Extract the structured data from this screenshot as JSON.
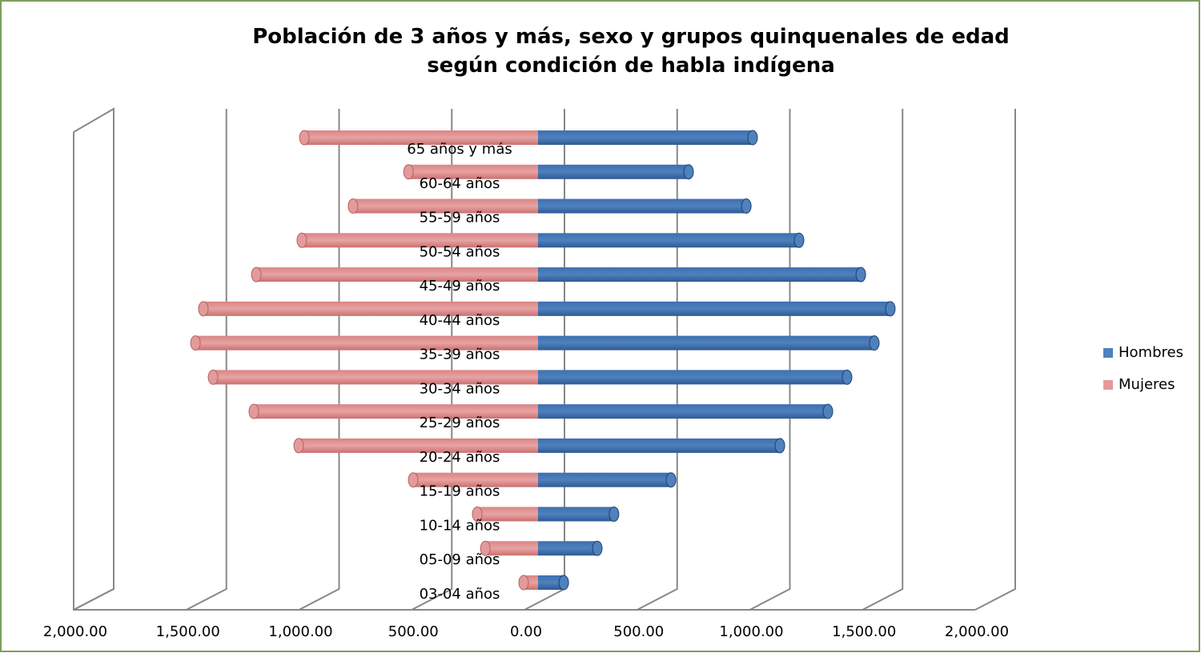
{
  "chart_data": {
    "type": "bar",
    "orientation": "horizontal",
    "stacked": true,
    "title": "Población de 3 años y más, sexo y grupos quinquenales de edad según condición de habla indígena",
    "categories": [
      "03-04 años",
      "05-09 años",
      "10-14 años",
      "15-19 años",
      "20-24 años",
      "25-29 años",
      "30-34 años",
      "35-39 años",
      "40-44 años",
      "45-49 años",
      "50-54 años",
      "55-59 años",
      "60-64 años",
      "65 años y más"
    ],
    "series": [
      {
        "name": "Hombres",
        "color": "#4f81bd",
        "values": [
          114,
          263,
          337,
          590,
          1073,
          1286,
          1371,
          1492,
          1563,
          1432,
          1158,
          924,
          668,
          952
        ]
      },
      {
        "name": "Mujeres",
        "color": "#e39a9a",
        "values": [
          -64,
          -234,
          -270,
          -554,
          -1062,
          -1261,
          -1442,
          -1520,
          -1485,
          -1250,
          -1048,
          -821,
          -575,
          -1037
        ]
      }
    ],
    "xlim": [
      -2000,
      2000
    ],
    "xticks": [
      {
        "value": -2000,
        "label": "2,000.00"
      },
      {
        "value": -1500,
        "label": "1,500.00"
      },
      {
        "value": -1000,
        "label": "1,000.00"
      },
      {
        "value": -500,
        "label": "500.00"
      },
      {
        "value": 0,
        "label": "0.00"
      },
      {
        "value": 500,
        "label": "500.00"
      },
      {
        "value": 1000,
        "label": "1,000.00"
      },
      {
        "value": 1500,
        "label": "1,500.00"
      },
      {
        "value": 2000,
        "label": "2,000.00"
      }
    ],
    "grid": true,
    "legend": "right"
  }
}
